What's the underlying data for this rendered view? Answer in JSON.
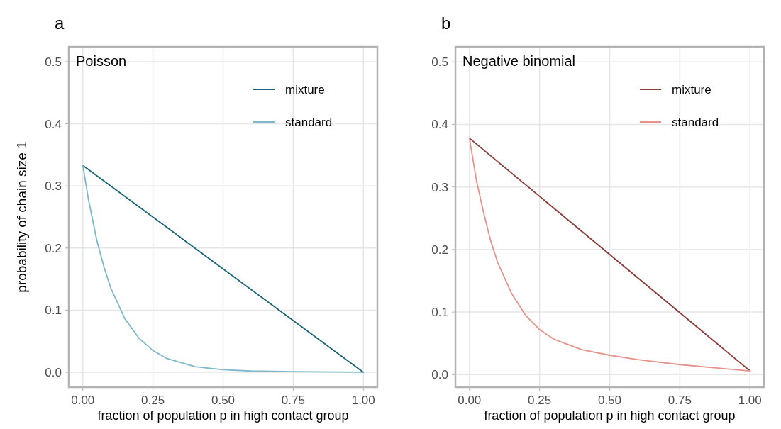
{
  "chart_data": [
    {
      "type": "line",
      "title": "a",
      "subtitle": "Poisson",
      "xlabel": "fraction of population p in high contact group",
      "ylabel": "probability of chain size 1",
      "xlim": [
        -0.05,
        1.05
      ],
      "ylim": [
        -0.024,
        0.524
      ],
      "xticks": [
        {
          "value": 0,
          "label": "0.00"
        },
        {
          "value": 0.25,
          "label": "0.25"
        },
        {
          "value": 0.5,
          "label": "0.50"
        },
        {
          "value": 0.75,
          "label": "0.75"
        },
        {
          "value": 1,
          "label": "1.00"
        }
      ],
      "yticks": [
        {
          "value": 0,
          "label": "0.0"
        },
        {
          "value": 0.1,
          "label": "0.1"
        },
        {
          "value": 0.2,
          "label": "0.2"
        },
        {
          "value": 0.3,
          "label": "0.3"
        },
        {
          "value": 0.4,
          "label": "0.4"
        },
        {
          "value": 0.5,
          "label": "0.5"
        }
      ],
      "grid": true,
      "legend": "top right",
      "line_style": "solid",
      "series": [
        {
          "name": "mixture",
          "color": "#1a6378",
          "x": [
            0,
            1
          ],
          "values": [
            0.333,
            0
          ]
        },
        {
          "name": "standard",
          "color": "#7fb8cc",
          "x": [
            0,
            0.02,
            0.05,
            0.075,
            0.1,
            0.15,
            0.2,
            0.25,
            0.3,
            0.4,
            0.5,
            0.6,
            0.75,
            1
          ],
          "values": [
            0.333,
            0.278,
            0.212,
            0.17,
            0.135,
            0.086,
            0.055,
            0.035,
            0.022,
            0.009,
            0.004,
            0.002,
            0.001,
            0
          ]
        }
      ]
    },
    {
      "type": "line",
      "title": "b",
      "subtitle": "Negative binomial",
      "xlabel": "fraction of population p in high contact group",
      "xlim": [
        -0.05,
        1.05
      ],
      "ylim": [
        -0.02,
        0.524
      ],
      "xticks": [
        {
          "value": 0,
          "label": "0.00"
        },
        {
          "value": 0.25,
          "label": "0.25"
        },
        {
          "value": 0.5,
          "label": "0.50"
        },
        {
          "value": 0.75,
          "label": "0.75"
        },
        {
          "value": 1,
          "label": "1.00"
        }
      ],
      "yticks": [
        {
          "value": 0,
          "label": "0.0"
        },
        {
          "value": 0.1,
          "label": "0.1"
        },
        {
          "value": 0.2,
          "label": "0.2"
        },
        {
          "value": 0.3,
          "label": "0.3"
        },
        {
          "value": 0.4,
          "label": "0.4"
        },
        {
          "value": 0.5,
          "label": "0.5"
        }
      ],
      "grid": true,
      "legend": "top right",
      "line_style": "solid",
      "series": [
        {
          "name": "mixture",
          "color": "#8b3d3a",
          "x": [
            0,
            1
          ],
          "values": [
            0.378,
            0.006
          ]
        },
        {
          "name": "standard",
          "color": "#e8928c",
          "x": [
            0,
            0.025,
            0.05,
            0.075,
            0.1,
            0.15,
            0.2,
            0.25,
            0.3,
            0.4,
            0.5,
            0.6,
            0.75,
            0.9,
            1
          ],
          "values": [
            0.378,
            0.31,
            0.26,
            0.215,
            0.18,
            0.13,
            0.095,
            0.072,
            0.057,
            0.04,
            0.031,
            0.024,
            0.016,
            0.01,
            0.006
          ]
        }
      ]
    }
  ]
}
